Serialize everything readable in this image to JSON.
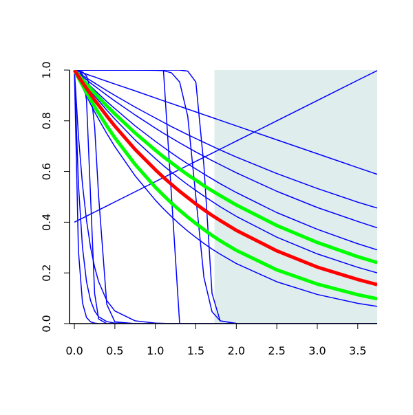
{
  "chart_data": {
    "type": "line",
    "x": [
      0,
      0.05,
      0.1,
      0.15,
      0.2,
      0.25,
      0.3,
      0.4,
      0.5,
      0.75,
      1.0,
      1.1,
      1.2,
      1.3,
      1.4,
      1.5,
      1.6,
      1.7,
      1.8,
      2.0,
      2.5,
      3.0,
      3.5,
      3.74
    ],
    "series": [
      {
        "color": "#0000ff",
        "width": 1.5,
        "values": [
          1,
          0.99,
          0.979,
          0.969,
          0.959,
          0.949,
          0.939,
          0.919,
          0.9,
          0.854,
          0.811,
          0.794,
          0.777,
          0.761,
          0.745,
          0.73,
          0.715,
          0.7,
          0.685,
          0.657,
          0.592,
          0.533,
          0.479,
          0.456
        ]
      },
      {
        "color": "#0000ff",
        "width": 1.5,
        "values": [
          1,
          0.987,
          0.974,
          0.962,
          0.949,
          0.937,
          0.925,
          0.901,
          0.878,
          0.823,
          0.771,
          0.751,
          0.732,
          0.713,
          0.695,
          0.677,
          0.66,
          0.643,
          0.627,
          0.595,
          0.522,
          0.458,
          0.403,
          0.378
        ]
      },
      {
        "color": "#0000ff",
        "width": 1.5,
        "values": [
          1,
          0.984,
          0.968,
          0.952,
          0.936,
          0.921,
          0.906,
          0.876,
          0.848,
          0.78,
          0.719,
          0.696,
          0.673,
          0.651,
          0.63,
          0.61,
          0.59,
          0.571,
          0.552,
          0.517,
          0.438,
          0.372,
          0.315,
          0.291
        ]
      },
      {
        "color": "#0000ff",
        "width": 1.5,
        "values": [
          1,
          0.979,
          0.958,
          0.938,
          0.918,
          0.898,
          0.879,
          0.842,
          0.807,
          0.724,
          0.651,
          0.623,
          0.597,
          0.572,
          0.548,
          0.525,
          0.503,
          0.482,
          0.461,
          0.423,
          0.341,
          0.275,
          0.222,
          0.2
        ]
      },
      {
        "color": "#0000ff",
        "width": 1.5,
        "values": [
          1,
          0.965,
          0.931,
          0.898,
          0.866,
          0.835,
          0.806,
          0.75,
          0.698,
          0.583,
          0.487,
          0.453,
          0.422,
          0.392,
          0.365,
          0.34,
          0.316,
          0.294,
          0.274,
          0.237,
          0.165,
          0.115,
          0.08,
          0.068
        ]
      },
      {
        "color": "#0000ff",
        "width": 1.5,
        "values": [
          1,
          0.741,
          0.549,
          0.407,
          0.301,
          0.223,
          0.165,
          0.091,
          0.05,
          0.011,
          0.002,
          0.001,
          0,
          0,
          0,
          0,
          0,
          0,
          0,
          0,
          0,
          0,
          0,
          0
        ]
      },
      {
        "color": "#0000ff",
        "width": 1.5,
        "values": [
          1,
          0.549,
          0.301,
          0.165,
          0.091,
          0.05,
          0.027,
          0.008,
          0.002,
          0,
          0,
          0,
          0,
          0,
          0,
          0,
          0,
          0,
          0,
          0,
          0,
          0,
          0,
          0
        ]
      },
      {
        "color": "#0000ff",
        "width": 1.5,
        "values": [
          1,
          0.287,
          0.082,
          0.024,
          0.007,
          0.002,
          0,
          0,
          0,
          0,
          0,
          0,
          0,
          0,
          0,
          0,
          0,
          0,
          0,
          0,
          0,
          0,
          0,
          0
        ]
      },
      {
        "color": "#0000ff",
        "width": 1.5,
        "values": [
          1,
          0.998,
          0.982,
          0.881,
          0.5,
          0.119,
          0.018,
          0,
          0,
          0,
          0,
          0,
          0,
          0,
          0,
          0,
          0,
          0,
          0,
          0,
          0,
          0,
          0,
          0
        ]
      },
      {
        "color": "#0000ff",
        "width": 1.5,
        "values": [
          0.999,
          0.998,
          0.993,
          0.977,
          0.924,
          0.777,
          0.5,
          0.076,
          0.007,
          0,
          0,
          0,
          0,
          0,
          0,
          0,
          0,
          0,
          0,
          0,
          0,
          0,
          0,
          0
        ]
      },
      {
        "color": "#0000ff",
        "width": 1.5,
        "values": [
          1,
          1,
          1,
          1,
          1,
          1,
          1,
          1,
          1,
          1,
          1,
          1,
          0.5,
          0,
          0,
          0,
          0,
          0,
          0,
          0,
          0,
          0,
          0,
          0
        ]
      },
      {
        "color": "#0000ff",
        "width": 1.5,
        "values": [
          1,
          1,
          1,
          1,
          1,
          1,
          1,
          1,
          1,
          1,
          0.999,
          0.998,
          0.989,
          0.953,
          0.818,
          0.5,
          0.182,
          0.047,
          0.011,
          0.001,
          0,
          0,
          0,
          0
        ]
      },
      {
        "color": "#0000ff",
        "width": 1.5,
        "values": [
          1,
          1,
          1,
          1,
          1,
          1,
          1,
          1,
          1,
          1,
          1,
          1,
          1,
          1,
          0.996,
          0.953,
          0.622,
          0.119,
          0.011,
          0,
          0,
          0,
          0,
          0
        ]
      },
      {
        "color": "#0000ff",
        "width": 1.5,
        "values": [
          0.4,
          0.408,
          0.416,
          0.424,
          0.432,
          0.44,
          0.448,
          0.464,
          0.48,
          0.52,
          0.56,
          0.576,
          0.592,
          0.608,
          0.624,
          0.64,
          0.656,
          0.672,
          0.688,
          0.72,
          0.8,
          0.88,
          0.96,
          0.998
        ]
      },
      {
        "color": "#0000ff",
        "width": 1.5,
        "values": [
          1,
          0.995,
          0.989,
          0.984,
          0.978,
          0.973,
          0.967,
          0.956,
          0.945,
          0.918,
          0.89,
          0.879,
          0.868,
          0.857,
          0.846,
          0.835,
          0.824,
          0.813,
          0.802,
          0.78,
          0.725,
          0.67,
          0.615,
          0.589
        ]
      },
      {
        "color": "#00ff00",
        "width": 5,
        "values": [
          1,
          0.981,
          0.963,
          0.945,
          0.927,
          0.909,
          0.892,
          0.859,
          0.827,
          0.752,
          0.684,
          0.658,
          0.634,
          0.61,
          0.587,
          0.566,
          0.544,
          0.524,
          0.505,
          0.468,
          0.387,
          0.32,
          0.264,
          0.241
        ]
      },
      {
        "color": "#00ff00",
        "width": 5,
        "values": [
          1,
          0.969,
          0.94,
          0.911,
          0.884,
          0.856,
          0.83,
          0.78,
          0.733,
          0.628,
          0.538,
          0.506,
          0.475,
          0.447,
          0.42,
          0.395,
          0.371,
          0.348,
          0.327,
          0.289,
          0.212,
          0.156,
          0.114,
          0.098
        ]
      },
      {
        "color": "#ff0000",
        "width": 5,
        "values": [
          1,
          0.975,
          0.951,
          0.928,
          0.905,
          0.882,
          0.861,
          0.819,
          0.779,
          0.687,
          0.607,
          0.577,
          0.549,
          0.522,
          0.497,
          0.472,
          0.449,
          0.427,
          0.407,
          0.368,
          0.287,
          0.223,
          0.174,
          0.154
        ]
      }
    ],
    "shaded_region": {
      "xmin": 1.73,
      "xmax": 3.74,
      "color": "#e0eded"
    },
    "xlim": [
      -0.06,
      3.74
    ],
    "ylim": [
      0,
      1
    ],
    "xticks": [
      {
        "value": 0,
        "label": "0.0"
      },
      0.5,
      {
        "value": 1,
        "label": "1.0"
      },
      1.5,
      {
        "value": 2,
        "label": "2.0"
      },
      2.5,
      {
        "value": 3,
        "label": "3.0"
      },
      3.5
    ],
    "yticks": [
      {
        "value": 0,
        "label": "0.0"
      },
      0.2,
      0.4,
      0.6,
      0.8,
      {
        "value": 1,
        "label": "1.0"
      }
    ]
  }
}
